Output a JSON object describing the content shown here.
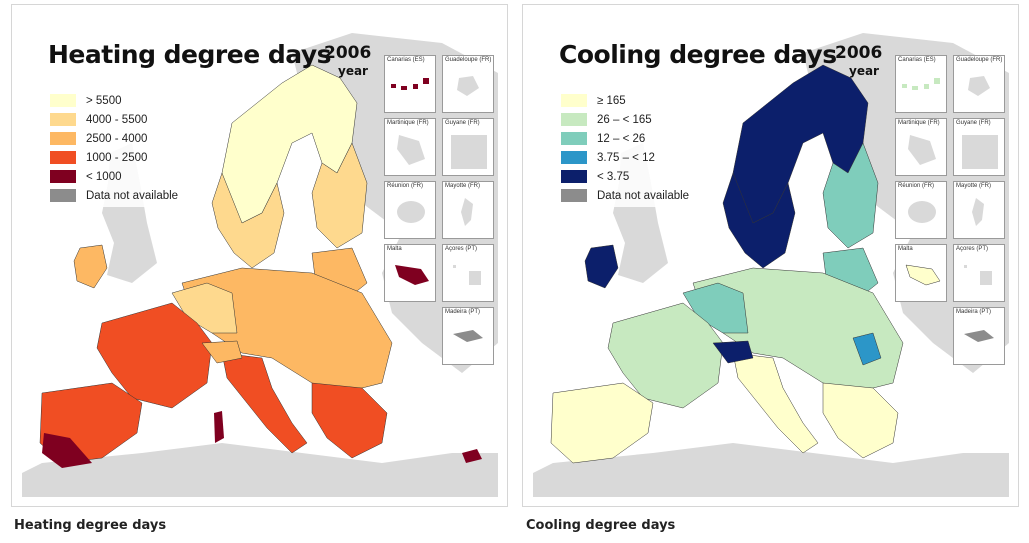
{
  "maps": [
    {
      "id": "heat",
      "title": "Heating degree days",
      "year": "2006",
      "year_unit": "year",
      "caption": "Heating degree days",
      "legend": [
        {
          "label": "> 5500",
          "color": "#ffffcc"
        },
        {
          "label": "4000 - 5500",
          "color": "#fed98e"
        },
        {
          "label": "2500 - 4000",
          "color": "#fdb863"
        },
        {
          "label": "1000 - 2500",
          "color": "#f04e23"
        },
        {
          "label": "< 1000",
          "color": "#7f0020"
        },
        {
          "label": "Data not available",
          "color": "#8c8c8c"
        }
      ]
    },
    {
      "id": "cool",
      "title": "Cooling degree days",
      "year": "2006",
      "year_unit": "year",
      "caption": "Cooling degree days",
      "legend": [
        {
          "label": "≥ 165",
          "color": "#ffffcc"
        },
        {
          "label": "26 – < 165",
          "color": "#c7e9c0"
        },
        {
          "label": "12 – < 26",
          "color": "#7fcdbb"
        },
        {
          "label": "3.75 – < 12",
          "color": "#2c96c8"
        },
        {
          "label": "< 3.75",
          "color": "#0c1f6b"
        },
        {
          "label": "Data not available",
          "color": "#8c8c8c"
        }
      ]
    }
  ],
  "insets": [
    {
      "label": "Canarias (ES)"
    },
    {
      "label": "Guadeloupe (FR)"
    },
    {
      "label": "Martinique (FR)"
    },
    {
      "label": "Guyane (FR)"
    },
    {
      "label": "Réunion (FR)"
    },
    {
      "label": "Mayotte (FR)"
    },
    {
      "label": "Malta"
    },
    {
      "label": "Açores (PT)"
    },
    {
      "label": "Madeira (PT)"
    }
  ],
  "colors": {
    "land_outside": "#d9d9d9",
    "sea": "#ffffff",
    "border": "#111111"
  }
}
